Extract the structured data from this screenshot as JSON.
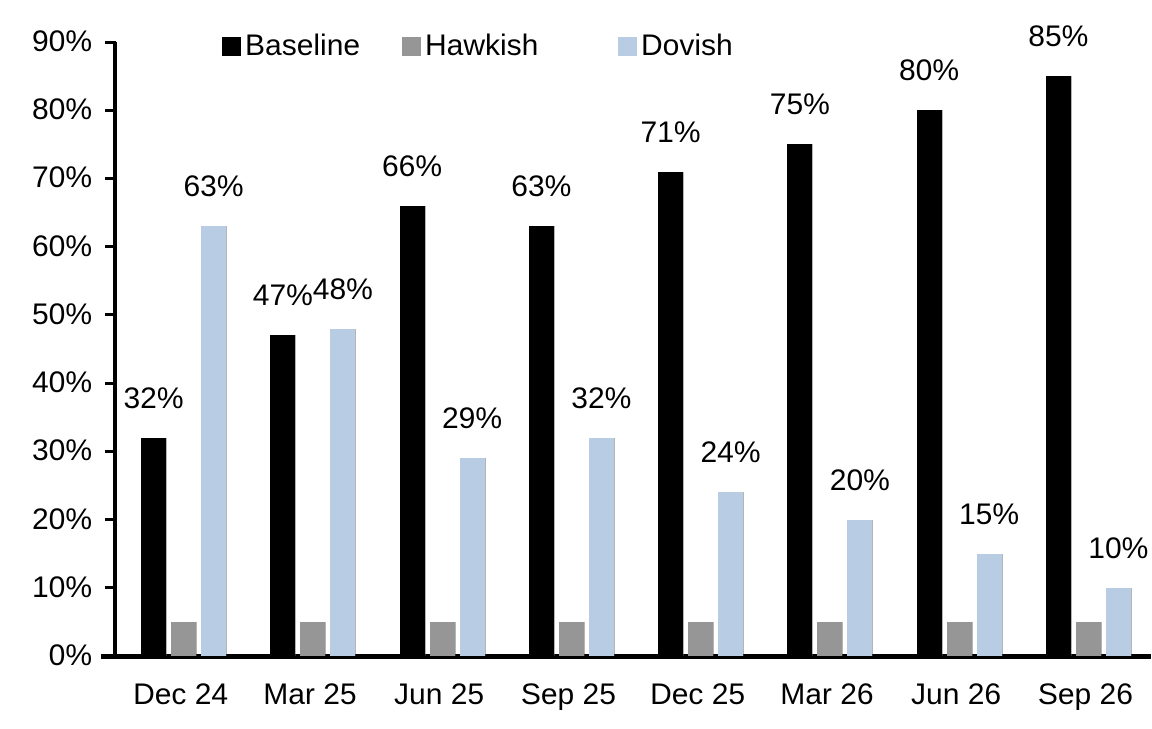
{
  "chart_data": {
    "type": "bar",
    "title": "",
    "xlabel": "",
    "ylabel": "",
    "categories": [
      "Dec 24",
      "Mar 25",
      "Jun 25",
      "Sep 25",
      "Dec 25",
      "Mar 26",
      "Jun 26",
      "Sep 26"
    ],
    "series": [
      {
        "name": "Baseline",
        "color": "#000000",
        "values": [
          32,
          47,
          66,
          63,
          71,
          75,
          80,
          85
        ],
        "labels": [
          "32%",
          "47%",
          "66%",
          "63%",
          "71%",
          "75%",
          "80%",
          "85%"
        ]
      },
      {
        "name": "Hawkish",
        "color": "#969696",
        "values": [
          5,
          5,
          5,
          5,
          5,
          5,
          5,
          5
        ],
        "labels": []
      },
      {
        "name": "Dovish",
        "color": "#b8cce4",
        "values": [
          63,
          48,
          29,
          32,
          24,
          20,
          15,
          10
        ],
        "labels": [
          "63%",
          "48%",
          "29%",
          "32%",
          "24%",
          "20%",
          "15%",
          "10%"
        ]
      }
    ],
    "ylim": [
      0,
      90
    ],
    "ytick_values": [
      0,
      10,
      20,
      30,
      40,
      50,
      60,
      70,
      80,
      90
    ],
    "ytick_labels": [
      "0%",
      "10%",
      "20%",
      "30%",
      "40%",
      "50%",
      "60%",
      "70%",
      "80%",
      "90%"
    ],
    "grid": false,
    "legend_position": "top",
    "axis_color": "#000000",
    "text_color": "#000000",
    "background_color": "#ffffff"
  }
}
